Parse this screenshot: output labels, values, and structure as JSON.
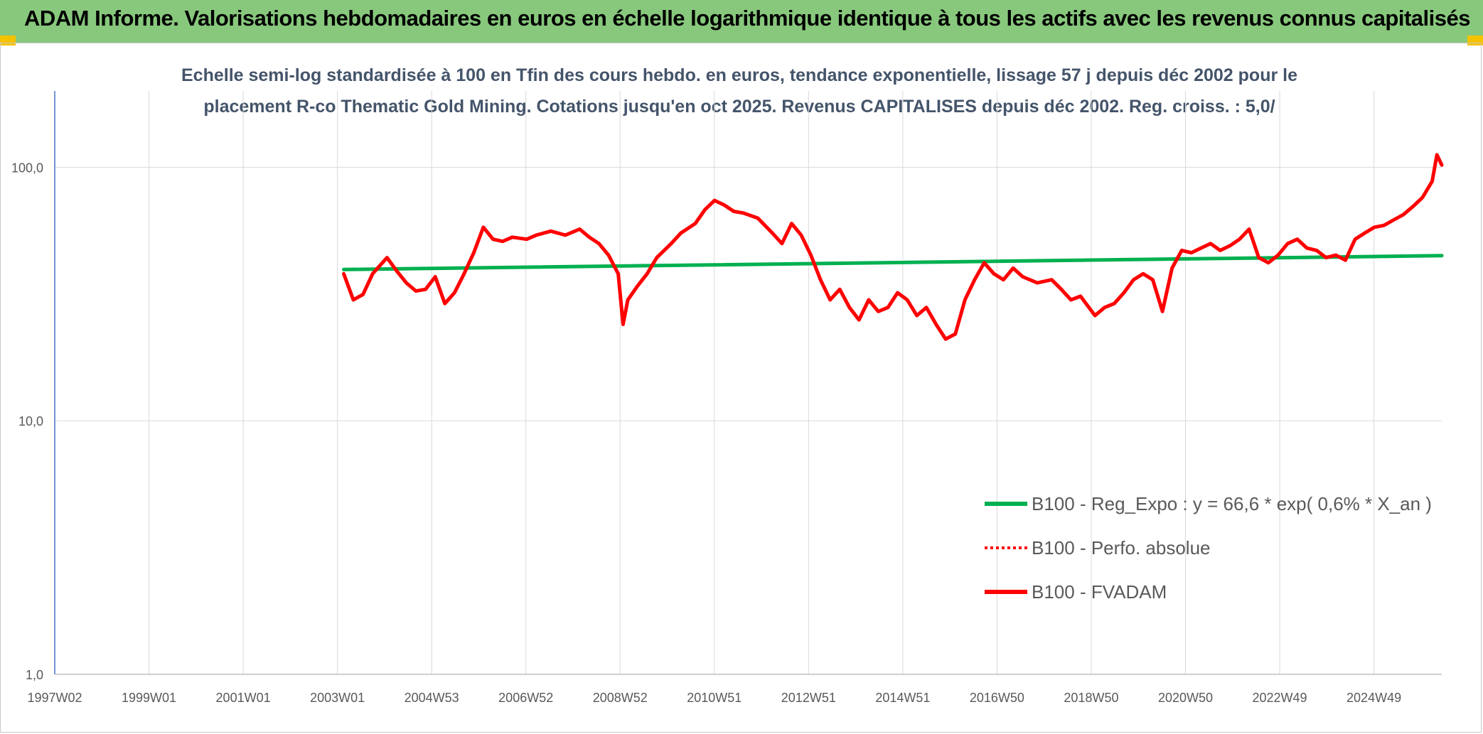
{
  "header": {
    "title": "ADAM Informe. Valorisations hebdomadaires en euros en échelle logarithmique identique à tous les actifs avec les revenus connus capitalisés",
    "banner_color": "#88c87d",
    "accent_color": "#f5c200"
  },
  "chart_data": {
    "type": "line",
    "subtitle_line1": "Echelle semi-log standardisée à 100 en Tfin des cours hebdo. en euros, tendance exponentielle, lissage 57 j depuis déc 2002 pour le",
    "subtitle_line2": "placement R-co Thematic Gold Mining. Cotations jusqu'en oct 2025. Revenus CAPITALISES depuis déc 2002. Reg. croiss. : 5,0/",
    "y_scale": "log",
    "ylim": [
      1,
      200
    ],
    "y_ticks": [
      "1,0",
      "10,0",
      "100,0"
    ],
    "x_range": [
      1997.0,
      2025.8
    ],
    "x_ticks": [
      "1997W02",
      "1999W01",
      "2001W01",
      "2003W01",
      "2004W53",
      "2006W52",
      "2008W52",
      "2010W51",
      "2012W51",
      "2014W51",
      "2016W50",
      "2018W50",
      "2020W50",
      "2022W49",
      "2024W49"
    ],
    "grid": "vertical",
    "legend_position": "bottom-right",
    "series": [
      {
        "name": "B100 - Reg_Expo : y = 66,6 * exp( 0,6% *  X_an )",
        "color": "#00b050",
        "style": "solid",
        "x": [
          2003.0,
          2025.8
        ],
        "y": [
          39.5,
          44.8
        ]
      },
      {
        "name": "B100 - Perfo. absolue",
        "color": "#ff0000",
        "style": "dotted",
        "x": [],
        "y": []
      },
      {
        "name": "B100 - FVADAM",
        "color": "#ff0000",
        "style": "solid",
        "x": [
          2003.0,
          2003.2,
          2003.4,
          2003.6,
          2003.9,
          2004.1,
          2004.3,
          2004.5,
          2004.7,
          2004.9,
          2005.1,
          2005.3,
          2005.5,
          2005.7,
          2005.9,
          2006.1,
          2006.3,
          2006.5,
          2006.8,
          2007.0,
          2007.3,
          2007.6,
          2007.9,
          2008.1,
          2008.3,
          2008.5,
          2008.7,
          2008.8,
          2008.9,
          2009.1,
          2009.3,
          2009.5,
          2009.8,
          2010.0,
          2010.3,
          2010.5,
          2010.7,
          2010.9,
          2011.1,
          2011.3,
          2011.6,
          2011.9,
          2012.1,
          2012.3,
          2012.5,
          2012.7,
          2012.9,
          2013.1,
          2013.3,
          2013.5,
          2013.7,
          2013.9,
          2014.1,
          2014.3,
          2014.5,
          2014.7,
          2014.9,
          2015.1,
          2015.3,
          2015.5,
          2015.7,
          2015.9,
          2016.1,
          2016.3,
          2016.5,
          2016.7,
          2016.9,
          2017.1,
          2017.4,
          2017.7,
          2017.9,
          2018.1,
          2018.3,
          2018.6,
          2018.8,
          2019.0,
          2019.2,
          2019.4,
          2019.6,
          2019.8,
          2020.0,
          2020.2,
          2020.4,
          2020.6,
          2020.8,
          2021.0,
          2021.2,
          2021.4,
          2021.6,
          2021.8,
          2022.0,
          2022.2,
          2022.4,
          2022.6,
          2022.8,
          2023.0,
          2023.2,
          2023.4,
          2023.6,
          2023.8,
          2024.0,
          2024.2,
          2024.4,
          2024.6,
          2024.8,
          2025.0,
          2025.2,
          2025.4,
          2025.6,
          2025.7,
          2025.8
        ],
        "y": [
          38.0,
          30.0,
          31.5,
          38.0,
          44.0,
          39.0,
          35.0,
          32.5,
          33.0,
          37.0,
          29.0,
          32.0,
          38.0,
          46.0,
          58.0,
          52.0,
          51.0,
          53.0,
          52.0,
          54.0,
          56.0,
          54.0,
          57.0,
          53.0,
          50.0,
          45.0,
          38.0,
          24.0,
          30.0,
          34.0,
          38.0,
          44.0,
          50.0,
          55.0,
          60.0,
          68.0,
          74.0,
          71.0,
          67.0,
          66.0,
          63.0,
          55.0,
          50.0,
          60.0,
          54.0,
          45.0,
          36.0,
          30.0,
          33.0,
          28.0,
          25.0,
          30.0,
          27.0,
          28.0,
          32.0,
          30.0,
          26.0,
          28.0,
          24.0,
          21.0,
          22.0,
          30.0,
          36.0,
          42.0,
          38.0,
          36.0,
          40.0,
          37.0,
          35.0,
          36.0,
          33.0,
          30.0,
          31.0,
          26.0,
          28.0,
          29.0,
          32.0,
          36.0,
          38.0,
          36.0,
          27.0,
          40.0,
          47.0,
          46.0,
          48.0,
          50.0,
          47.0,
          49.0,
          52.0,
          57.0,
          44.0,
          42.0,
          45.0,
          50.0,
          52.0,
          48.0,
          47.0,
          44.0,
          45.0,
          43.0,
          52.0,
          55.0,
          58.0,
          59.0,
          62.0,
          65.0,
          70.0,
          76.0,
          88.0,
          112.0,
          102.0
        ]
      }
    ]
  }
}
